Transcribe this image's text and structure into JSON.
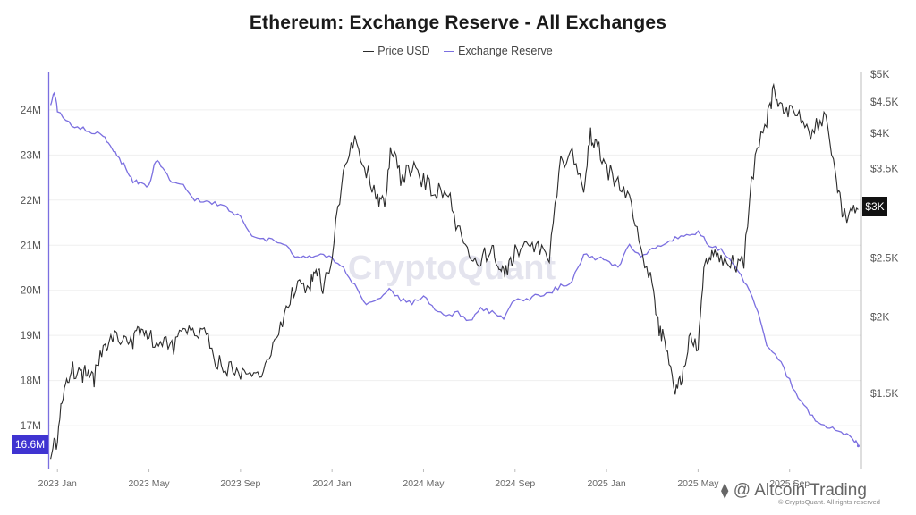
{
  "chart_data": {
    "type": "line",
    "title": "Ethereum: Exchange Reserve - All Exchanges",
    "watermark": "CryptoQuant",
    "x_ticks": [
      "2023 Jan",
      "2023 May",
      "2023 Sep",
      "2024 Jan",
      "2024 May",
      "2024 Sep",
      "2025 Jan",
      "2025 May",
      "2025 Sep"
    ],
    "x_tick_months": [
      0,
      4,
      8,
      12,
      16,
      20,
      24,
      28,
      32
    ],
    "x_range_months": [
      -0.4,
      35.1
    ],
    "left_axis": {
      "label": "Exchange Reserve",
      "ticks": [
        17,
        18,
        19,
        20,
        21,
        22,
        23,
        24
      ],
      "tick_labels": [
        "17M",
        "18M",
        "19M",
        "20M",
        "21M",
        "22M",
        "23M",
        "24M"
      ],
      "range": [
        16.05,
        24.85
      ],
      "current_value_label": "16.6M",
      "current_value": 16.6
    },
    "right_axis": {
      "label": "Price USD",
      "scale": "log",
      "ticks": [
        1500,
        2000,
        2500,
        3000,
        3500,
        4000,
        4500,
        5000
      ],
      "tick_labels": [
        "$1.5K",
        "$2K",
        "$2.5K",
        "$3K",
        "$3.5K",
        "$4K",
        "$4.5K",
        "$5K"
      ],
      "range": [
        1130,
        5050
      ],
      "current_value_label": "$3K",
      "current_value": 3000
    },
    "series": [
      {
        "name": "Price USD",
        "color": "#2b2b2b",
        "axis": "right",
        "x_months": [
          -0.3,
          0,
          0.3,
          0.6,
          1,
          1.3,
          1.6,
          2,
          2.5,
          3,
          3.3,
          3.6,
          4,
          4.5,
          5,
          5.5,
          6,
          6.5,
          7,
          7.5,
          8,
          8.5,
          9,
          9.5,
          10,
          10.5,
          11,
          11.3,
          11.6,
          12,
          12.5,
          13,
          13.5,
          14,
          14.3,
          14.6,
          15,
          15.5,
          16,
          16.5,
          17,
          17.5,
          18,
          18.5,
          19,
          19.3,
          19.6,
          20,
          20.5,
          21,
          21.5,
          22,
          22.5,
          23,
          23.3,
          23.6,
          24,
          24.5,
          25,
          25.5,
          26,
          26.3,
          26.6,
          27,
          27.3,
          27.6,
          28,
          28.3,
          28.6,
          29,
          29.5,
          30,
          30.5,
          31,
          31.3,
          31.6,
          32,
          32.5,
          33,
          33.5,
          34,
          34.3,
          34.6,
          35
        ],
        "values": [
          1200,
          1250,
          1550,
          1650,
          1600,
          1650,
          1580,
          1800,
          1840,
          1850,
          1820,
          1900,
          1850,
          1840,
          1780,
          1870,
          1900,
          1850,
          1680,
          1650,
          1620,
          1560,
          1650,
          1800,
          2050,
          2300,
          2250,
          2400,
          2250,
          2500,
          3400,
          3900,
          3500,
          3100,
          3100,
          3800,
          3400,
          3500,
          3350,
          3200,
          3250,
          2800,
          2550,
          2500,
          2600,
          2350,
          2400,
          2550,
          2600,
          2650,
          2450,
          3600,
          3700,
          3300,
          4000,
          3800,
          3500,
          3300,
          3200,
          2600,
          2250,
          1900,
          1800,
          1500,
          1600,
          1850,
          1800,
          2450,
          2500,
          2500,
          2450,
          2450,
          3700,
          4200,
          4700,
          4400,
          4350,
          4200,
          4000,
          4300,
          3500,
          2900,
          2950,
          3000
        ]
      },
      {
        "name": "Exchange Reserve",
        "color": "#7b6fe0",
        "axis": "left",
        "x_months": [
          -0.3,
          -0.15,
          0,
          0.5,
          1,
          1.5,
          2,
          2.3,
          2.6,
          3,
          3.3,
          3.6,
          4,
          4.3,
          4.6,
          5,
          5.5,
          6,
          6.5,
          7,
          7.5,
          8,
          8.5,
          9,
          9.5,
          10,
          10.5,
          11,
          11.5,
          12,
          12.5,
          13,
          13.5,
          14,
          14.5,
          15,
          15.5,
          16,
          16.5,
          17,
          17.5,
          18,
          18.5,
          19,
          19.5,
          20,
          20.5,
          21,
          21.5,
          22,
          22.5,
          23,
          23.5,
          24,
          24.5,
          25,
          25.5,
          26,
          26.5,
          27,
          27.5,
          28,
          28.5,
          29,
          29.5,
          30,
          30.5,
          31,
          31.5,
          32,
          32.5,
          33,
          33.5,
          34,
          34.5,
          34.8,
          35
        ],
        "values": [
          24.1,
          24.4,
          24.0,
          23.7,
          23.6,
          23.5,
          23.45,
          23.2,
          23.0,
          22.7,
          22.4,
          22.4,
          22.3,
          22.9,
          22.7,
          22.4,
          22.3,
          22.0,
          22.0,
          21.9,
          21.8,
          21.6,
          21.2,
          21.15,
          21.1,
          21.0,
          20.7,
          20.75,
          20.8,
          20.7,
          20.5,
          20.1,
          19.7,
          19.8,
          20.0,
          19.8,
          19.7,
          19.9,
          19.6,
          19.4,
          19.5,
          19.3,
          19.6,
          19.5,
          19.4,
          19.8,
          19.8,
          19.9,
          19.95,
          20.1,
          20.2,
          20.8,
          20.7,
          20.7,
          20.5,
          21.0,
          20.7,
          20.9,
          21.0,
          21.15,
          21.2,
          21.3,
          21.0,
          20.9,
          20.6,
          20.2,
          19.7,
          18.8,
          18.5,
          18.0,
          17.5,
          17.2,
          17.0,
          16.9,
          16.8,
          16.7,
          16.55
        ]
      }
    ]
  },
  "legend": {
    "price_label": "Price USD",
    "reserve_label": "Exchange Reserve"
  },
  "credit": {
    "mark": "⧫",
    "text": "@ Altcoin Trading",
    "copyright": "© CryptoQuant. All rights reserved"
  },
  "colors": {
    "price": "#2b2b2b",
    "reserve": "#7b6fe0",
    "reserve_tag_bg": "#3f33d1",
    "price_tag_bg": "#111111",
    "grid": "#efefef"
  }
}
